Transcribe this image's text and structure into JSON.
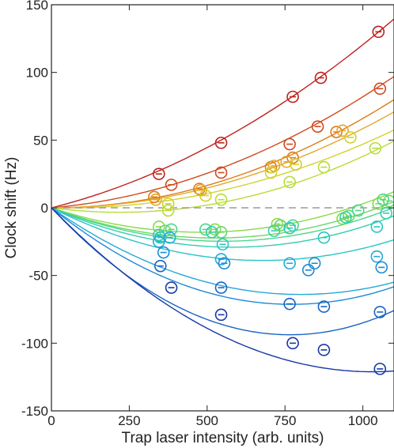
{
  "chart_data": {
    "type": "scatter",
    "title": "",
    "xlabel": "Trap laser intensity (arb. units)",
    "ylabel": "Clock shift (Hz)",
    "xlim": [
      0,
      1100
    ],
    "ylim": [
      -150,
      150
    ],
    "x_ticks": [
      0,
      250,
      500,
      750,
      1000
    ],
    "y_ticks": [
      -150,
      -100,
      -50,
      0,
      50,
      100,
      150
    ],
    "x_tick_labels": [
      "0",
      "250",
      "500",
      "750",
      "1000"
    ],
    "y_tick_labels": [
      "-150",
      "-100",
      "-50",
      "0",
      "50",
      "100",
      "150"
    ],
    "zero_line": "dashed grey",
    "marker": "open circle with error bar",
    "series": [
      {
        "color": "#c0201c",
        "fit": [
          0.0575,
          6.3e-05
        ],
        "points": [
          [
            345,
            25
          ],
          [
            545,
            48
          ],
          [
            775,
            82
          ],
          [
            865,
            96
          ],
          [
            1050,
            130
          ]
        ]
      },
      {
        "color": "#cf4a1e",
        "fit": [
          0.02,
          6.2e-05
        ],
        "points": [
          [
            385,
            17
          ],
          [
            545,
            26
          ],
          [
            765,
            47
          ],
          [
            855,
            60
          ],
          [
            1055,
            88
          ]
        ]
      },
      {
        "color": "#dc7c18",
        "fit": [
          0.0,
          6.6e-05
        ],
        "points": [
          [
            330,
            8
          ],
          [
            475,
            14
          ],
          [
            705,
            30
          ],
          [
            775,
            37
          ],
          [
            915,
            56
          ]
        ]
      },
      {
        "color": "#e6a72a",
        "fit": [
          0.0,
          5.85e-05
        ],
        "points": [
          [
            335,
            6
          ],
          [
            480,
            13
          ],
          [
            715,
            31
          ],
          [
            755,
            34
          ],
          [
            935,
            57
          ]
        ]
      },
      {
        "color": "#d2d22c",
        "fit": [
          -0.005,
          5.2e-05
        ],
        "points": [
          [
            375,
            3
          ],
          [
            495,
            9
          ],
          [
            705,
            26
          ],
          [
            785,
            32
          ],
          [
            960,
            52
          ]
        ]
      },
      {
        "color": "#b7dc38",
        "fit": [
          -0.03,
          6.8e-05
        ],
        "points": [
          [
            375,
            -2
          ],
          [
            545,
            6
          ],
          [
            765,
            19
          ],
          [
            875,
            30
          ],
          [
            1040,
            44
          ]
        ]
      },
      {
        "color": "#8ad94a",
        "fit": [
          -0.075,
          7.8e-05
        ],
        "points": [
          [
            345,
            -14
          ],
          [
            525,
            -16
          ],
          [
            725,
            -12
          ],
          [
            935,
            -8
          ],
          [
            1050,
            3
          ]
        ]
      },
      {
        "color": "#69d864",
        "fit": [
          -0.085,
          8.1e-05
        ],
        "points": [
          [
            365,
            -17
          ],
          [
            545,
            -18
          ],
          [
            735,
            -13
          ],
          [
            955,
            -6
          ],
          [
            1085,
            5
          ]
        ]
      },
      {
        "color": "#4ad68c",
        "fit": [
          -0.09,
          8.2e-05
        ],
        "points": [
          [
            385,
            -16
          ],
          [
            495,
            -16
          ],
          [
            775,
            -13
          ],
          [
            985,
            -2
          ],
          [
            1065,
            6
          ]
        ]
      },
      {
        "color": "#34ceae",
        "fit": [
          -0.1,
          8.6e-05
        ],
        "points": [
          [
            345,
            -20
          ],
          [
            515,
            -18
          ],
          [
            715,
            -17
          ],
          [
            945,
            -7
          ],
          [
            1075,
            -4
          ]
        ]
      },
      {
        "color": "#2cc4c8",
        "fit": [
          -0.115,
          8.5e-05
        ],
        "points": [
          [
            350,
            -22
          ],
          [
            550,
            -27
          ],
          [
            765,
            -15
          ],
          [
            875,
            -22
          ],
          [
            1045,
            -14
          ]
        ]
      },
      {
        "color": "#24a8d8",
        "fit": [
          -0.16,
          0.0001
        ],
        "points": [
          [
            345,
            -25
          ],
          [
            380,
            -22
          ],
          [
            545,
            -38
          ],
          [
            765,
            -41
          ],
          [
            1045,
            -36
          ]
        ]
      },
      {
        "color": "#1d8ad6",
        "fit": [
          -0.185,
          0.00012
        ],
        "points": [
          [
            360,
            -33
          ],
          [
            555,
            -41
          ],
          [
            845,
            -41
          ],
          [
            825,
            -46
          ],
          [
            1060,
            -44
          ]
        ]
      },
      {
        "color": "#1a63c4",
        "fit": [
          -0.245,
          0.00016
        ],
        "points": [
          [
            350,
            -43
          ],
          [
            545,
            -59
          ],
          [
            765,
            -71
          ],
          [
            875,
            -73
          ],
          [
            1055,
            -77
          ]
        ]
      },
      {
        "color": "#1738a6",
        "fit": [
          -0.235,
          0.000114
        ],
        "points": [
          [
            385,
            -59
          ],
          [
            545,
            -79
          ],
          [
            775,
            -100
          ],
          [
            875,
            -105
          ],
          [
            1055,
            -119
          ]
        ]
      }
    ]
  }
}
